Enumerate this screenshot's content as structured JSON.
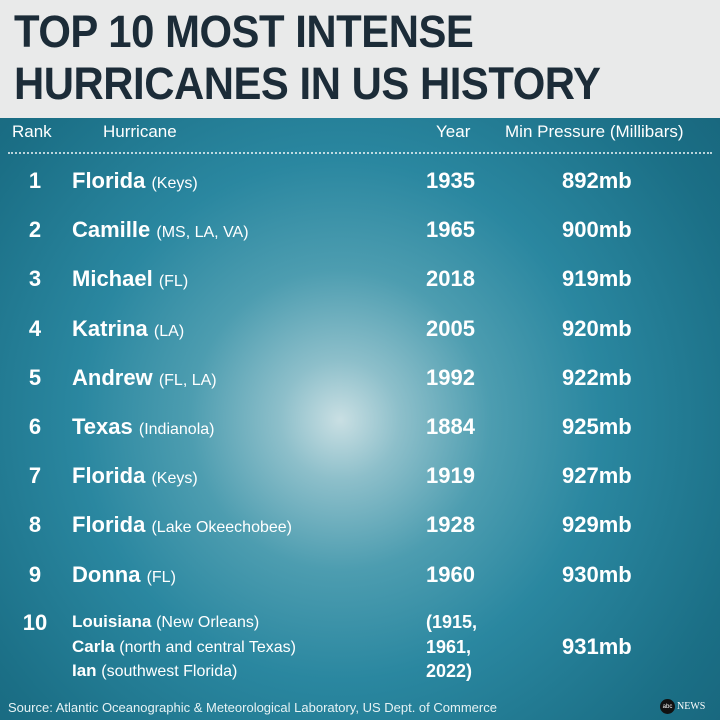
{
  "title_line1": "TOP 10 MOST INTENSE",
  "title_line2": "HURRICANES IN US HISTORY",
  "chart_data": {
    "type": "table",
    "columns": [
      "Rank",
      "Hurricane",
      "Year",
      "Min Pressure (Millibars)"
    ],
    "rows": [
      {
        "rank": "1",
        "name": "Florida",
        "region": "(Keys)",
        "year": "1935",
        "pressure": "892mb"
      },
      {
        "rank": "2",
        "name": "Camille",
        "region": "(MS, LA, VA)",
        "year": "1965",
        "pressure": "900mb"
      },
      {
        "rank": "3",
        "name": "Michael",
        "region": "(FL)",
        "year": "2018",
        "pressure": "919mb"
      },
      {
        "rank": "4",
        "name": "Katrina",
        "region": "(LA)",
        "year": "2005",
        "pressure": "920mb"
      },
      {
        "rank": "5",
        "name": "Andrew",
        "region": "(FL, LA)",
        "year": "1992",
        "pressure": "922mb"
      },
      {
        "rank": "6",
        "name": "Texas",
        "region": "(Indianola)",
        "year": "1884",
        "pressure": "925mb"
      },
      {
        "rank": "7",
        "name": "Florida",
        "region": "(Keys)",
        "year": "1919",
        "pressure": "927mb"
      },
      {
        "rank": "8",
        "name": "Florida",
        "region": "(Lake Okeechobee)",
        "year": "1928",
        "pressure": "929mb"
      },
      {
        "rank": "9",
        "name": "Donna",
        "region": "(FL)",
        "year": "1960",
        "pressure": "930mb"
      }
    ],
    "tie": {
      "rank": "10",
      "entries": [
        {
          "name": "Louisiana",
          "region": "(New Orleans)",
          "year": "(1915,"
        },
        {
          "name": "Carla",
          "region": "(north and central Texas)",
          "year": "1961,"
        },
        {
          "name": "Ian",
          "region": "(southwest Florida)",
          "year": "2022)"
        }
      ],
      "pressure": "931mb"
    }
  },
  "source": "Source: Atlantic Oceanographic & Meteorological Laboratory, US Dept. of Commerce",
  "logo": {
    "mark": "abc",
    "text": "NEWS"
  },
  "colors": {
    "banner": "#e9eaea",
    "title": "#1c2c38",
    "background": "#2a87a0"
  }
}
